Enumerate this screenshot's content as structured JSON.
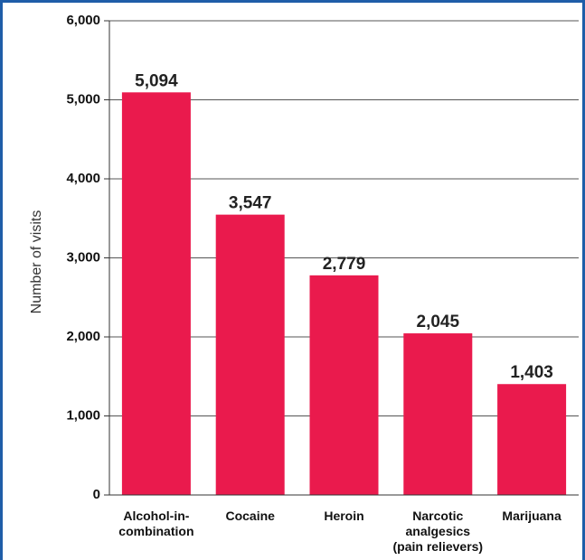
{
  "chart_data": {
    "type": "bar",
    "categories": [
      [
        "Alcohol-in-",
        "combination"
      ],
      [
        "Cocaine"
      ],
      [
        "Heroin"
      ],
      [
        "Narcotic",
        "analgesics",
        "(pain relievers)"
      ],
      [
        "Marijuana"
      ]
    ],
    "values": [
      5094,
      3547,
      2779,
      2045,
      1403
    ],
    "value_labels": [
      "5,094",
      "3,547",
      "2,779",
      "2,045",
      "1,403"
    ],
    "ylabel": "Number of visits",
    "xlabel": "",
    "title": "",
    "ylim": [
      0,
      6000
    ],
    "yticks": [
      0,
      1000,
      2000,
      3000,
      4000,
      5000,
      6000
    ],
    "ytick_labels": [
      "0",
      "1,000",
      "2,000",
      "3,000",
      "4,000",
      "5,000",
      "6,000"
    ],
    "grid": true,
    "bar_color": "#ea1a4d",
    "grid_color": "#555555",
    "frame_color": "#1f5da8"
  }
}
